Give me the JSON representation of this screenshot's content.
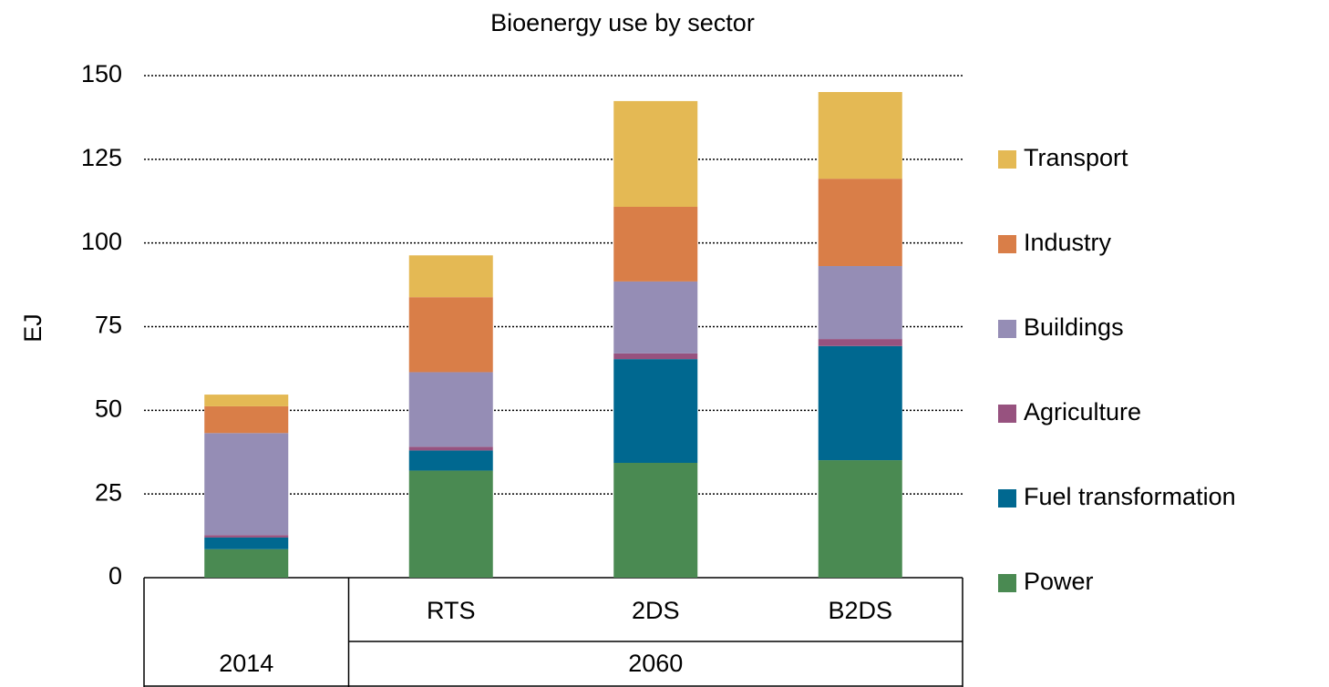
{
  "chart_data": {
    "type": "stacked_bar",
    "title": "Bioenergy use by sector",
    "y_label": "EJ",
    "categories": [
      null,
      "RTS",
      "2DS",
      "B2DS"
    ],
    "groups": [
      {
        "name": "2014",
        "count": 1
      },
      {
        "name": "2060",
        "count": 3
      }
    ],
    "series": [
      {
        "name": "Power",
        "color": "#4a8a52",
        "values": [
          8.5,
          32,
          34.3,
          35.1
        ]
      },
      {
        "name": "Fuel transformation",
        "color": "#006890",
        "values": [
          3.5,
          6,
          31,
          34.1
        ]
      },
      {
        "name": "Agriculture",
        "color": "#97527f",
        "values": [
          0.7,
          1.1,
          1.7,
          2.1
        ]
      },
      {
        "name": "Buildings",
        "color": "#958db5",
        "values": [
          30.5,
          22.3,
          21.5,
          21.8
        ]
      },
      {
        "name": "Industry",
        "color": "#d97e48",
        "values": [
          8,
          22.4,
          22.3,
          26.1
        ]
      },
      {
        "name": "Transport",
        "color": "#e4b954",
        "values": [
          3.5,
          12.5,
          31.6,
          25.9
        ]
      }
    ],
    "ylim": [
      0,
      150
    ],
    "yticks": [
      0,
      25,
      50,
      75,
      100,
      125,
      150
    ],
    "grid": true,
    "legend": "right"
  }
}
